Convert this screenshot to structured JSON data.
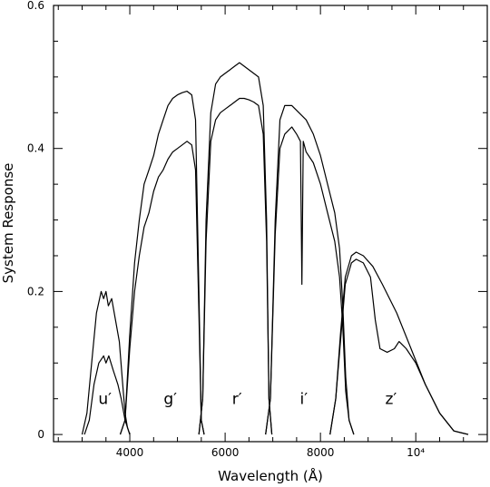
{
  "chart_data": {
    "type": "line",
    "title": "",
    "xlabel": "Wavelength (Å)",
    "ylabel": "System Response",
    "xlim": [
      2400,
      11500
    ],
    "ylim": [
      -0.01,
      0.6
    ],
    "x_ticks": [
      {
        "value": 4000,
        "label": "4000"
      },
      {
        "value": 6000,
        "label": "6000"
      },
      {
        "value": 8000,
        "label": "8000"
      },
      {
        "value": 10000,
        "label": "10⁴"
      }
    ],
    "y_ticks": [
      {
        "value": 0,
        "label": "0"
      },
      {
        "value": 0.2,
        "label": "0.2"
      },
      {
        "value": 0.4,
        "label": "0.4"
      },
      {
        "value": 0.6,
        "label": "0.6"
      }
    ],
    "band_labels": [
      {
        "text": "u′",
        "x": 3480,
        "y": 0.05
      },
      {
        "text": "g′",
        "x": 4850,
        "y": 0.05
      },
      {
        "text": "r′",
        "x": 6250,
        "y": 0.05
      },
      {
        "text": "i′",
        "x": 7650,
        "y": 0.05
      },
      {
        "text": "z′",
        "x": 9480,
        "y": 0.05
      }
    ],
    "grid": false,
    "series": [
      {
        "band": "u",
        "curve": "upper",
        "points": [
          [
            3000,
            0
          ],
          [
            3100,
            0.03
          ],
          [
            3200,
            0.1
          ],
          [
            3300,
            0.17
          ],
          [
            3400,
            0.2
          ],
          [
            3450,
            0.19
          ],
          [
            3500,
            0.2
          ],
          [
            3550,
            0.18
          ],
          [
            3620,
            0.19
          ],
          [
            3700,
            0.16
          ],
          [
            3780,
            0.13
          ],
          [
            3840,
            0.08
          ],
          [
            3900,
            0.03
          ],
          [
            3950,
            0.01
          ],
          [
            4000,
            0
          ]
        ]
      },
      {
        "band": "u",
        "curve": "lower",
        "points": [
          [
            3050,
            0
          ],
          [
            3150,
            0.02
          ],
          [
            3250,
            0.07
          ],
          [
            3350,
            0.1
          ],
          [
            3450,
            0.11
          ],
          [
            3500,
            0.1
          ],
          [
            3560,
            0.11
          ],
          [
            3650,
            0.09
          ],
          [
            3750,
            0.07
          ],
          [
            3820,
            0.05
          ],
          [
            3900,
            0.02
          ],
          [
            4000,
            0
          ]
        ]
      },
      {
        "band": "g",
        "curve": "upper",
        "points": [
          [
            3800,
            0
          ],
          [
            3900,
            0.02
          ],
          [
            4000,
            0.14
          ],
          [
            4100,
            0.24
          ],
          [
            4200,
            0.3
          ],
          [
            4300,
            0.35
          ],
          [
            4400,
            0.37
          ],
          [
            4500,
            0.39
          ],
          [
            4600,
            0.42
          ],
          [
            4700,
            0.44
          ],
          [
            4800,
            0.46
          ],
          [
            4900,
            0.47
          ],
          [
            5000,
            0.475
          ],
          [
            5100,
            0.478
          ],
          [
            5200,
            0.48
          ],
          [
            5300,
            0.475
          ],
          [
            5380,
            0.44
          ],
          [
            5450,
            0.2
          ],
          [
            5500,
            0.02
          ],
          [
            5560,
            0
          ]
        ]
      },
      {
        "band": "g",
        "curve": "lower",
        "points": [
          [
            3800,
            0
          ],
          [
            3900,
            0.02
          ],
          [
            4000,
            0.12
          ],
          [
            4100,
            0.2
          ],
          [
            4200,
            0.25
          ],
          [
            4300,
            0.29
          ],
          [
            4400,
            0.31
          ],
          [
            4500,
            0.34
          ],
          [
            4600,
            0.36
          ],
          [
            4700,
            0.37
          ],
          [
            4800,
            0.385
          ],
          [
            4900,
            0.395
          ],
          [
            5000,
            0.4
          ],
          [
            5100,
            0.405
          ],
          [
            5200,
            0.41
          ],
          [
            5300,
            0.405
          ],
          [
            5380,
            0.37
          ],
          [
            5450,
            0.17
          ],
          [
            5500,
            0.02
          ],
          [
            5560,
            0
          ]
        ]
      },
      {
        "band": "r",
        "curve": "upper",
        "points": [
          [
            5450,
            0
          ],
          [
            5530,
            0.05
          ],
          [
            5600,
            0.3
          ],
          [
            5700,
            0.45
          ],
          [
            5800,
            0.49
          ],
          [
            5900,
            0.5
          ],
          [
            6000,
            0.505
          ],
          [
            6100,
            0.51
          ],
          [
            6200,
            0.515
          ],
          [
            6300,
            0.52
          ],
          [
            6400,
            0.515
          ],
          [
            6500,
            0.51
          ],
          [
            6600,
            0.505
          ],
          [
            6700,
            0.5
          ],
          [
            6800,
            0.46
          ],
          [
            6870,
            0.3
          ],
          [
            6920,
            0.05
          ],
          [
            6980,
            0
          ]
        ]
      },
      {
        "band": "r",
        "curve": "lower",
        "points": [
          [
            5450,
            0
          ],
          [
            5530,
            0.05
          ],
          [
            5600,
            0.27
          ],
          [
            5700,
            0.41
          ],
          [
            5800,
            0.44
          ],
          [
            5900,
            0.45
          ],
          [
            6000,
            0.455
          ],
          [
            6100,
            0.46
          ],
          [
            6200,
            0.465
          ],
          [
            6300,
            0.47
          ],
          [
            6400,
            0.47
          ],
          [
            6500,
            0.468
          ],
          [
            6600,
            0.465
          ],
          [
            6700,
            0.46
          ],
          [
            6800,
            0.42
          ],
          [
            6870,
            0.27
          ],
          [
            6920,
            0.05
          ],
          [
            6980,
            0
          ]
        ]
      },
      {
        "band": "i",
        "curve": "upper",
        "points": [
          [
            6850,
            0
          ],
          [
            6950,
            0.05
          ],
          [
            7050,
            0.3
          ],
          [
            7150,
            0.44
          ],
          [
            7250,
            0.46
          ],
          [
            7400,
            0.46
          ],
          [
            7550,
            0.45
          ],
          [
            7700,
            0.44
          ],
          [
            7850,
            0.42
          ],
          [
            8000,
            0.39
          ],
          [
            8150,
            0.35
          ],
          [
            8300,
            0.31
          ],
          [
            8400,
            0.26
          ],
          [
            8470,
            0.18
          ],
          [
            8530,
            0.08
          ],
          [
            8600,
            0.02
          ],
          [
            8700,
            0
          ]
        ]
      },
      {
        "band": "i",
        "curve": "lower",
        "points": [
          [
            6850,
            0
          ],
          [
            6950,
            0.05
          ],
          [
            7050,
            0.28
          ],
          [
            7150,
            0.4
          ],
          [
            7250,
            0.42
          ],
          [
            7400,
            0.43
          ],
          [
            7500,
            0.42
          ],
          [
            7580,
            0.41
          ],
          [
            7610,
            0.21
          ],
          [
            7640,
            0.41
          ],
          [
            7700,
            0.395
          ],
          [
            7850,
            0.38
          ],
          [
            8000,
            0.35
          ],
          [
            8150,
            0.31
          ],
          [
            8300,
            0.27
          ],
          [
            8400,
            0.22
          ],
          [
            8470,
            0.15
          ],
          [
            8530,
            0.06
          ],
          [
            8600,
            0.02
          ],
          [
            8700,
            0
          ]
        ]
      },
      {
        "band": "z",
        "curve": "upper",
        "points": [
          [
            8200,
            0
          ],
          [
            8320,
            0.05
          ],
          [
            8420,
            0.14
          ],
          [
            8520,
            0.22
          ],
          [
            8650,
            0.25
          ],
          [
            8750,
            0.255
          ],
          [
            8900,
            0.25
          ],
          [
            9100,
            0.235
          ],
          [
            9300,
            0.21
          ],
          [
            9600,
            0.17
          ],
          [
            9900,
            0.12
          ],
          [
            10200,
            0.07
          ],
          [
            10500,
            0.03
          ],
          [
            10800,
            0.005
          ],
          [
            11100,
            0
          ]
        ]
      },
      {
        "band": "z",
        "curve": "lower",
        "points": [
          [
            8200,
            0
          ],
          [
            8320,
            0.05
          ],
          [
            8420,
            0.13
          ],
          [
            8520,
            0.21
          ],
          [
            8650,
            0.24
          ],
          [
            8750,
            0.245
          ],
          [
            8900,
            0.24
          ],
          [
            9050,
            0.22
          ],
          [
            9150,
            0.16
          ],
          [
            9250,
            0.12
          ],
          [
            9400,
            0.115
          ],
          [
            9550,
            0.12
          ],
          [
            9650,
            0.13
          ],
          [
            9800,
            0.12
          ],
          [
            10000,
            0.1
          ],
          [
            10200,
            0.07
          ],
          [
            10500,
            0.03
          ],
          [
            10800,
            0.005
          ],
          [
            11100,
            0
          ]
        ]
      }
    ]
  }
}
